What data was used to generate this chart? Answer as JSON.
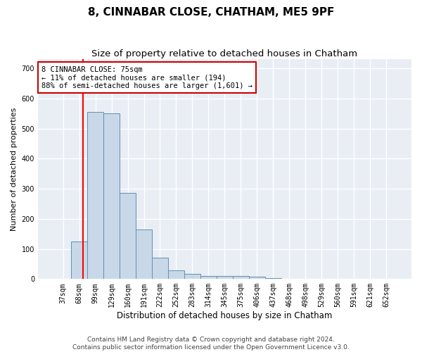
{
  "title": "8, CINNABAR CLOSE, CHATHAM, ME5 9PF",
  "subtitle": "Size of property relative to detached houses in Chatham",
  "xlabel": "Distribution of detached houses by size in Chatham",
  "ylabel": "Number of detached properties",
  "categories": [
    "37sqm",
    "68sqm",
    "99sqm",
    "129sqm",
    "160sqm",
    "191sqm",
    "222sqm",
    "252sqm",
    "283sqm",
    "314sqm",
    "345sqm",
    "375sqm",
    "406sqm",
    "437sqm",
    "468sqm",
    "498sqm",
    "529sqm",
    "560sqm",
    "591sqm",
    "621sqm",
    "652sqm"
  ],
  "values": [
    0,
    125,
    555,
    550,
    285,
    165,
    70,
    30,
    17,
    10,
    10,
    10,
    7,
    3,
    0,
    0,
    0,
    0,
    0,
    0,
    0
  ],
  "bar_color": "#c8d8e8",
  "bar_edge_color": "#6090b0",
  "annotation_line1": "8 CINNABAR CLOSE: 75sqm",
  "annotation_line2": "← 11% of detached houses are smaller (194)",
  "annotation_line3": "88% of semi-detached houses are larger (1,601) →",
  "annotation_box_color": "#ffffff",
  "annotation_box_edge_color": "#cc0000",
  "ylim": [
    0,
    730
  ],
  "yticks": [
    0,
    100,
    200,
    300,
    400,
    500,
    600,
    700
  ],
  "background_color": "#e8eef4",
  "grid_color": "#ffffff",
  "footer_line1": "Contains HM Land Registry data © Crown copyright and database right 2024.",
  "footer_line2": "Contains public sector information licensed under the Open Government Licence v3.0.",
  "title_fontsize": 11,
  "subtitle_fontsize": 9.5,
  "xlabel_fontsize": 8.5,
  "ylabel_fontsize": 8,
  "tick_fontsize": 7,
  "footer_fontsize": 6.5,
  "annotation_text_fontsize": 7.5
}
